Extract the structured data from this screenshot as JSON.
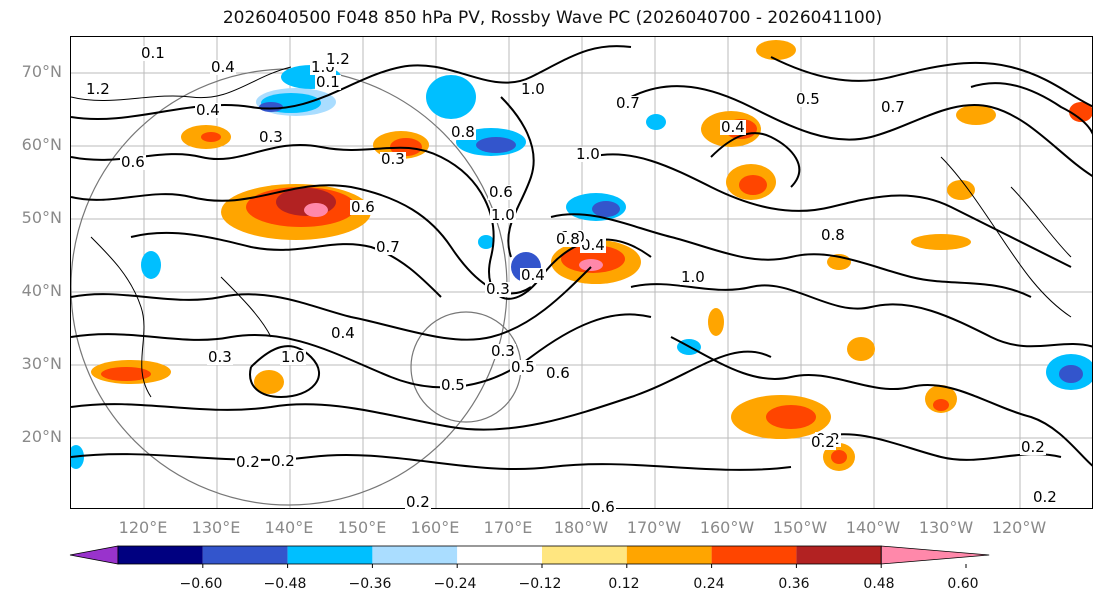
{
  "title": "2026040500 F048 850 hPa PV, Rossby Wave PC (2026040700 - 2026041100)",
  "axes": {
    "lat_labels": [
      "70°N",
      "60°N",
      "50°N",
      "40°N",
      "30°N",
      "20°N"
    ],
    "lon_labels": [
      "120°E",
      "130°E",
      "140°E",
      "150°E",
      "160°E",
      "170°E",
      "180°W",
      "170°W",
      "160°W",
      "150°W",
      "140°W",
      "130°W",
      "120°W"
    ]
  },
  "colorbar": {
    "ticks": [
      "−0.60",
      "−0.48",
      "−0.36",
      "−0.24",
      "−0.12",
      "0.12",
      "0.24",
      "0.36",
      "0.48",
      "0.60"
    ],
    "colors": [
      "#9933cc",
      "#000080",
      "#3355cc",
      "#00bfff",
      "#aaddff",
      "#ffffff",
      "#ffe680",
      "#ffa500",
      "#ff4500",
      "#b22222",
      "#ff88aa"
    ]
  },
  "contour_labels": [
    "0.4",
    "0.1",
    "1.2",
    "1.0",
    "0.1",
    "1.2",
    "0.4",
    "0.3",
    "0.8",
    "1.0",
    "0.7",
    "0.4",
    "0.6",
    "0.5",
    "0.7",
    "1.0",
    "0.3",
    "1.0",
    "0.4",
    "0.4",
    "0.3",
    "0.6",
    "0.6",
    "1.0",
    "0.8",
    "0.7",
    "1.0",
    "0.8",
    "1.0",
    "0.4",
    "0.2",
    "0.6",
    "0.5",
    "0.5",
    "0.6",
    "0.3",
    "0.2",
    "0.2",
    "0.2",
    "0.2",
    "0.2",
    "0.2",
    "0.3"
  ]
}
